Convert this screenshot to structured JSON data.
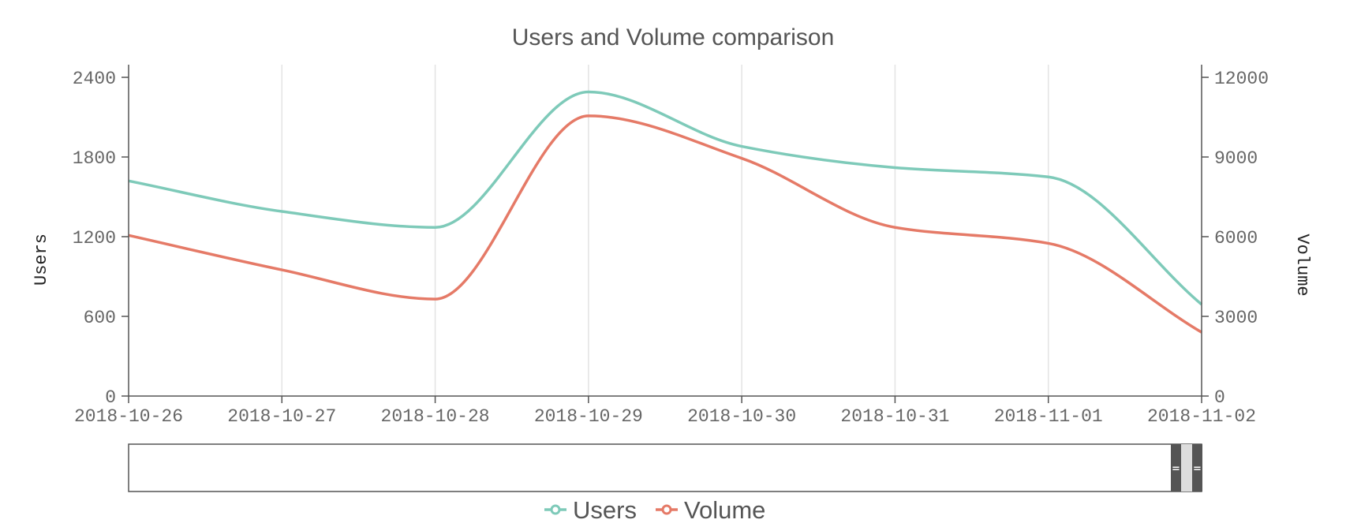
{
  "chart_data": {
    "type": "line",
    "title": "Users and Volume comparison",
    "x_categories": [
      "2018-10-26",
      "2018-10-27",
      "2018-10-28",
      "2018-10-29",
      "2018-10-30",
      "2018-10-31",
      "2018-11-01",
      "2018-11-02"
    ],
    "y_left": {
      "label": "Users",
      "range": [
        0,
        2400
      ],
      "ticks": [
        0,
        600,
        1200,
        1800,
        2400
      ]
    },
    "y_right": {
      "label": "Volume",
      "range": [
        0,
        12000
      ],
      "ticks": [
        0,
        3000,
        6000,
        9000,
        12000
      ]
    },
    "grid": "vertical",
    "legend_position": "bottom",
    "series": [
      {
        "name": "Users",
        "axis": "left",
        "color": "#7ecab9",
        "values": [
          1620,
          1390,
          1270,
          2290,
          1880,
          1720,
          1650,
          690
        ]
      },
      {
        "name": "Volume",
        "axis": "right",
        "color": "#e57a67",
        "values": [
          6050,
          4750,
          3650,
          10550,
          8950,
          6350,
          5750,
          2400
        ]
      }
    ]
  },
  "navigator": {
    "handle_color": "#555555"
  }
}
